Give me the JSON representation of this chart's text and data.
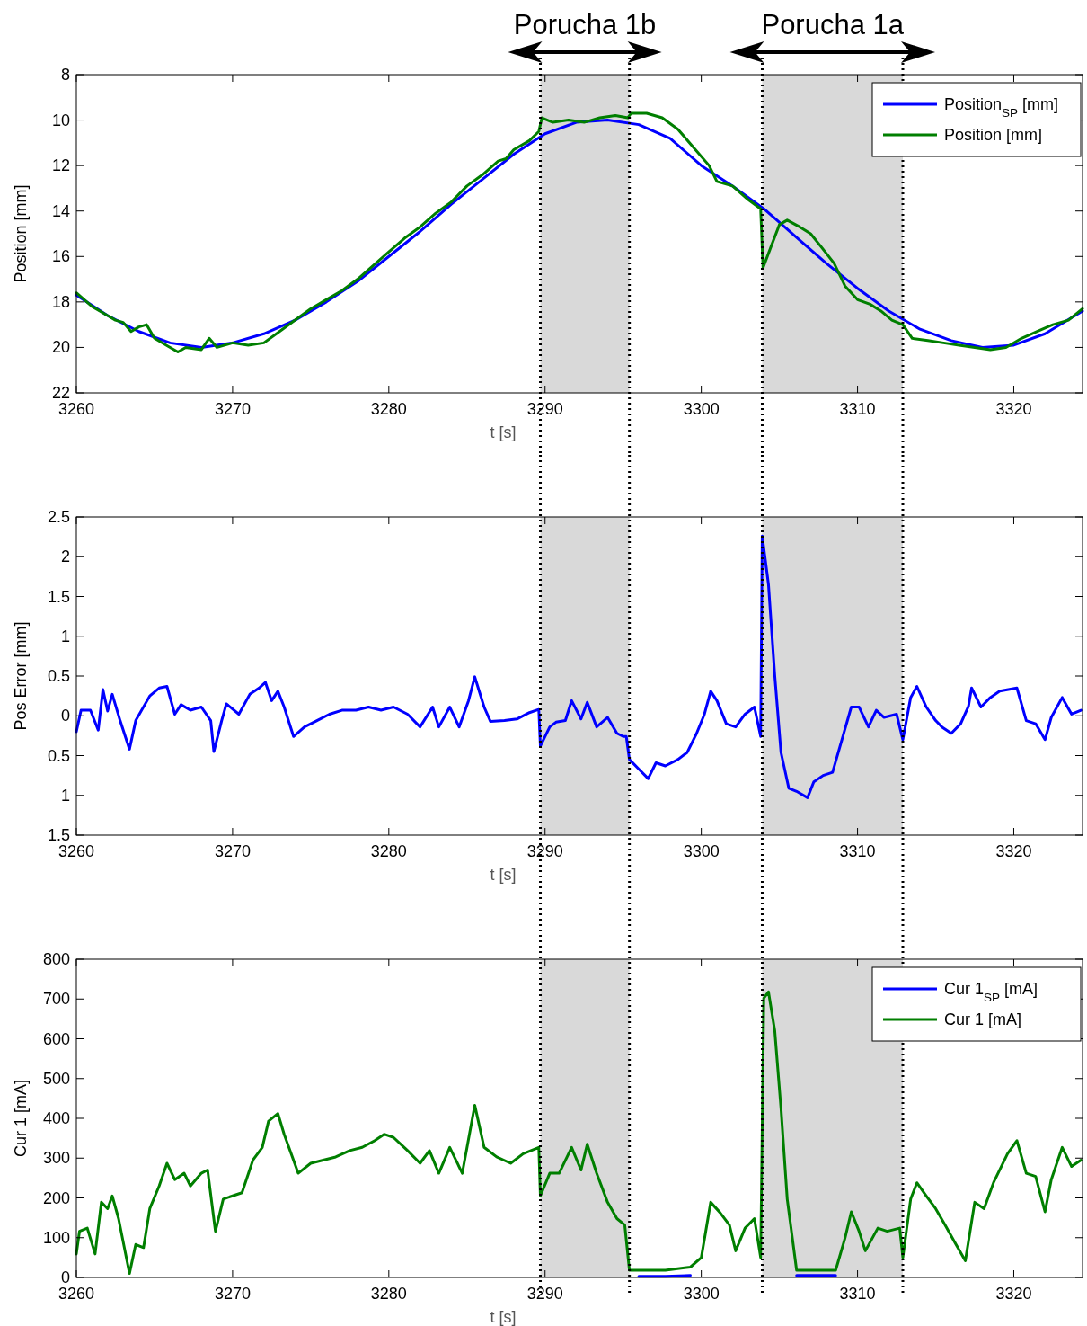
{
  "chart_data": [
    {
      "type": "line",
      "ylabel": "Position [mm]",
      "xlabel": "t [s]",
      "xlim": [
        3260,
        3324.4
      ],
      "xticks": [
        3260,
        3270,
        3280,
        3290,
        3300,
        3310,
        3320
      ],
      "ylim": [
        22,
        8
      ],
      "yticks": [
        8,
        10,
        12,
        14,
        16,
        18,
        20,
        22
      ],
      "legend": "top right",
      "grid": false,
      "annotations": [
        "Porucha 1b",
        "Porucha 1a"
      ],
      "bands": [
        {
          "axis": "x",
          "from": 3289.7,
          "to": 3295.4,
          "color": "#d9d9d9"
        },
        {
          "axis": "x",
          "from": 3303.9,
          "to": 3312.9,
          "color": "#d9d9d9"
        }
      ],
      "ref_lines": [
        {
          "axis": "x",
          "value": 3289.7,
          "color": "#000000",
          "line_style": "dotted"
        },
        {
          "axis": "x",
          "value": 3295.4,
          "color": "#000000",
          "line_style": "dotted"
        },
        {
          "axis": "x",
          "value": 3303.9,
          "color": "#000000",
          "line_style": "dotted"
        },
        {
          "axis": "x",
          "value": 3312.9,
          "color": "#000000",
          "line_style": "dotted"
        }
      ],
      "series": [
        {
          "name": "Position$_{SP}$ [mm]",
          "color": "#0000ff",
          "x": [
            3260,
            3262,
            3264,
            3266,
            3268,
            3270,
            3272,
            3274,
            3276,
            3278,
            3280,
            3282,
            3284,
            3286,
            3288,
            3290,
            3292,
            3294,
            3296,
            3298,
            3300,
            3302,
            3304,
            3306,
            3308,
            3310,
            3312,
            3314,
            3316,
            3318,
            3320,
            3322,
            3324.4
          ],
          "values": [
            17.7,
            18.6,
            19.3,
            19.8,
            20.0,
            19.8,
            19.4,
            18.8,
            18.0,
            17.1,
            16.0,
            14.9,
            13.7,
            12.6,
            11.5,
            10.6,
            10.1,
            10.0,
            10.2,
            10.8,
            12.0,
            12.9,
            13.9,
            15.1,
            16.3,
            17.4,
            18.4,
            19.2,
            19.7,
            20.0,
            19.9,
            19.4,
            18.4
          ]
        },
        {
          "name": "Position [mm]",
          "color": "#007f00",
          "x": [
            3260,
            3261,
            3262,
            3262.5,
            3263,
            3263.5,
            3264,
            3264.5,
            3265,
            3266,
            3266.5,
            3267,
            3268,
            3268.5,
            3269,
            3270,
            3271,
            3272,
            3273,
            3274,
            3275,
            3276,
            3277,
            3278,
            3279,
            3280,
            3281,
            3282,
            3283,
            3284,
            3285,
            3286,
            3287,
            3287.5,
            3288,
            3289,
            3289.6,
            3289.8,
            3290.5,
            3291.5,
            3292.5,
            3293.5,
            3294.5,
            3295.3,
            3295.5,
            3296.5,
            3297.5,
            3298.5,
            3299.5,
            3300.5,
            3301,
            3302,
            3303,
            3303.8,
            3303.95,
            3304.5,
            3305,
            3305.5,
            3306.3,
            3307,
            3307.7,
            3308.5,
            3309.2,
            3310,
            3310.8,
            3311.5,
            3312.2,
            3312.9,
            3313.5,
            3314.5,
            3315.5,
            3316.5,
            3317.5,
            3318.5,
            3319.5,
            3320.5,
            3321.5,
            3322.5,
            3323.5,
            3324.4
          ],
          "values": [
            17.6,
            18.2,
            18.6,
            18.8,
            18.9,
            19.3,
            19.1,
            19.0,
            19.6,
            20.0,
            20.2,
            20.0,
            20.1,
            19.6,
            20.0,
            19.8,
            19.9,
            19.8,
            19.3,
            18.8,
            18.3,
            17.9,
            17.5,
            17.0,
            16.4,
            15.8,
            15.2,
            14.7,
            14.1,
            13.6,
            12.9,
            12.4,
            11.8,
            11.7,
            11.3,
            10.9,
            10.5,
            9.9,
            10.1,
            10.0,
            10.1,
            9.9,
            9.8,
            9.9,
            9.7,
            9.7,
            9.9,
            10.4,
            11.2,
            12.0,
            12.7,
            12.9,
            13.5,
            13.9,
            16.5,
            15.5,
            14.6,
            14.4,
            14.7,
            15.0,
            15.6,
            16.3,
            17.3,
            17.9,
            18.1,
            18.4,
            18.8,
            19.0,
            19.6,
            19.7,
            19.8,
            19.9,
            20.0,
            20.1,
            20.0,
            19.6,
            19.3,
            19.0,
            18.8,
            18.3
          ]
        }
      ]
    },
    {
      "type": "line",
      "ylabel": "Pos Error [mm]",
      "xlabel": "t [s]",
      "xlim": [
        3260,
        3324.4
      ],
      "xticks": [
        3260,
        3270,
        3280,
        3290,
        3300,
        3310,
        3320
      ],
      "ylim": [
        -1.5,
        2.5
      ],
      "yticks": [
        2.5,
        2,
        1.5,
        1,
        0.5,
        0,
        {
          "value": -0.5,
          "label": "0.5"
        },
        {
          "value": -1,
          "label": "1"
        },
        {
          "value": -1.5,
          "label": "1.5"
        }
      ],
      "grid": false,
      "bands": [
        {
          "axis": "x",
          "from": 3289.7,
          "to": 3295.4,
          "color": "#d9d9d9"
        },
        {
          "axis": "x",
          "from": 3303.9,
          "to": 3312.9,
          "color": "#d9d9d9"
        }
      ],
      "ref_lines": [
        {
          "axis": "x",
          "value": 3289.7,
          "color": "#000000",
          "line_style": "dotted"
        },
        {
          "axis": "x",
          "value": 3295.4,
          "color": "#000000",
          "line_style": "dotted"
        },
        {
          "axis": "x",
          "value": 3303.9,
          "color": "#000000",
          "line_style": "dotted"
        },
        {
          "axis": "x",
          "value": 3312.9,
          "color": "#000000",
          "line_style": "dotted"
        }
      ],
      "series": [
        {
          "color": "#0000ff",
          "x": [
            3260,
            3260.3,
            3260.9,
            3261.4,
            3261.7,
            3262,
            3262.3,
            3262.8,
            3263.4,
            3263.8,
            3264.7,
            3265.3,
            3265.8,
            3266.3,
            3266.7,
            3267.3,
            3268,
            3268.6,
            3268.8,
            3269.3,
            3269.6,
            3270.4,
            3271.1,
            3271.7,
            3272.1,
            3272.5,
            3272.9,
            3273.3,
            3273.9,
            3274.6,
            3275.4,
            3276.2,
            3277,
            3277.9,
            3278.7,
            3279.5,
            3280.3,
            3281.2,
            3282,
            3282.8,
            3283.2,
            3283.9,
            3284.5,
            3285.1,
            3285.5,
            3286.1,
            3286.5,
            3287.4,
            3288.2,
            3289,
            3289.6,
            3289.7,
            3290.3,
            3290.7,
            3291.3,
            3291.7,
            3292.3,
            3292.7,
            3293.3,
            3294,
            3294.6,
            3295,
            3295.2,
            3295.4,
            3296,
            3296.6,
            3297.1,
            3297.7,
            3298.5,
            3299.1,
            3299.7,
            3300.2,
            3300.6,
            3301,
            3301.6,
            3302.2,
            3302.8,
            3303.4,
            3303.8,
            3303.9,
            3304.3,
            3304.7,
            3305.1,
            3305.6,
            3306.1,
            3306.8,
            3307.2,
            3307.8,
            3308.4,
            3309,
            3309.6,
            3310.1,
            3310.7,
            3311.2,
            3311.7,
            3312.5,
            3312.9,
            3313.4,
            3313.8,
            3314.4,
            3315,
            3315.4,
            3316,
            3316.6,
            3317.1,
            3317.3,
            3317.9,
            3318.5,
            3319.1,
            3320.2,
            3320.8,
            3321.4,
            3322,
            3322.4,
            3323.1,
            3323.7,
            3324.3
          ],
          "values": [
            -0.2,
            0.07,
            0.07,
            -0.18,
            0.33,
            0.06,
            0.27,
            -0.06,
            -0.42,
            -0.06,
            0.25,
            0.35,
            0.37,
            0.02,
            0.14,
            0.07,
            0.11,
            -0.06,
            -0.45,
            -0.06,
            0.15,
            0.02,
            0.27,
            0.35,
            0.42,
            0.19,
            0.31,
            0.11,
            -0.26,
            -0.14,
            -0.06,
            0.02,
            0.07,
            0.07,
            0.11,
            0.07,
            0.11,
            0.02,
            -0.14,
            0.11,
            -0.14,
            0.11,
            -0.14,
            0.19,
            0.49,
            0.11,
            -0.07,
            -0.06,
            -0.04,
            0.04,
            0.08,
            -0.38,
            -0.14,
            -0.08,
            -0.06,
            0.19,
            -0.04,
            0.17,
            -0.14,
            -0.02,
            -0.22,
            -0.26,
            -0.26,
            -0.55,
            -0.67,
            -0.79,
            -0.59,
            -0.63,
            -0.55,
            -0.46,
            -0.22,
            0.02,
            0.31,
            0.19,
            -0.1,
            -0.14,
            0.02,
            0.11,
            -0.26,
            2.26,
            1.65,
            0.51,
            -0.46,
            -0.91,
            -0.95,
            -1.03,
            -0.83,
            -0.75,
            -0.71,
            -0.3,
            0.11,
            0.11,
            -0.14,
            0.07,
            -0.02,
            0.02,
            -0.3,
            0.23,
            0.37,
            0.11,
            -0.06,
            -0.14,
            -0.22,
            -0.1,
            0.12,
            0.35,
            0.11,
            0.23,
            0.31,
            0.35,
            -0.06,
            -0.1,
            -0.3,
            -0.02,
            0.23,
            0.02,
            0.07
          ]
        }
      ]
    },
    {
      "type": "line",
      "ylabel": "Cur 1 [mA]",
      "xlabel": "t [s]",
      "xlim": [
        3260,
        3324.4
      ],
      "xticks": [
        3260,
        3270,
        3280,
        3290,
        3300,
        3310,
        3320
      ],
      "ylim": [
        0,
        800
      ],
      "yticks": [
        0,
        100,
        200,
        300,
        400,
        500,
        600,
        700,
        800
      ],
      "legend": "top right",
      "grid": false,
      "bands": [
        {
          "axis": "x",
          "from": 3289.7,
          "to": 3295.4,
          "color": "#d9d9d9"
        },
        {
          "axis": "x",
          "from": 3303.9,
          "to": 3312.9,
          "color": "#d9d9d9"
        }
      ],
      "ref_lines": [
        {
          "axis": "x",
          "value": 3289.7,
          "color": "#000000",
          "line_style": "dotted"
        },
        {
          "axis": "x",
          "value": 3295.4,
          "color": "#000000",
          "line_style": "dotted"
        },
        {
          "axis": "x",
          "value": 3303.9,
          "color": "#000000",
          "line_style": "dotted"
        },
        {
          "axis": "x",
          "value": 3312.9,
          "color": "#000000",
          "line_style": "dotted"
        }
      ],
      "x": [
        3260,
        3260.2,
        3260.7,
        3261.2,
        3261.6,
        3262,
        3262.3,
        3262.7,
        3263.4,
        3263.8,
        3264.3,
        3264.7,
        3265.3,
        3265.8,
        3266.3,
        3266.9,
        3267.3,
        3268,
        3268.4,
        3268.9,
        3269.4,
        3270,
        3270.6,
        3271.3,
        3271.9,
        3272.3,
        3272.9,
        3273.3,
        3274.2,
        3275,
        3275.8,
        3276.6,
        3277.5,
        3278.3,
        3279.1,
        3279.7,
        3280.3,
        3281.2,
        3282,
        3282.6,
        3283.2,
        3283.9,
        3284.7,
        3285.5,
        3286.1,
        3286.9,
        3287.8,
        3288.6,
        3289.6,
        3289.7,
        3290.3,
        3290.9,
        3291.7,
        3292.3,
        3292.7,
        3293.3,
        3294,
        3294.6,
        3295.1,
        3295.4,
        3296,
        3297.7,
        3299.3,
        3300,
        3300.6,
        3301.2,
        3301.8,
        3302.2,
        3302.8,
        3303.4,
        3303.8,
        3304,
        3304.3,
        3304.7,
        3305.1,
        3305.5,
        3306.1,
        3307.2,
        3308.6,
        3309.2,
        3309.6,
        3310.1,
        3310.5,
        3311.3,
        3311.9,
        3312.7,
        3312.9,
        3313.4,
        3313.8,
        3314.4,
        3315,
        3315.6,
        3316.3,
        3316.9,
        3317.5,
        3318.1,
        3318.7,
        3319.6,
        3320.2,
        3320.8,
        3321.4,
        3322,
        3322.4,
        3323.1,
        3323.7,
        3324.3
      ],
      "series": [
        {
          "name": "Cur 1$_{SP}$ [mA]",
          "color": "#0000ff",
          "values": [
            null,
            null,
            null,
            null,
            null,
            null,
            null,
            null,
            null,
            null,
            null,
            null,
            null,
            null,
            null,
            null,
            null,
            null,
            null,
            null,
            null,
            null,
            null,
            null,
            null,
            null,
            null,
            null,
            null,
            null,
            null,
            null,
            null,
            null,
            null,
            null,
            null,
            null,
            null,
            null,
            null,
            null,
            null,
            null,
            null,
            null,
            null,
            null,
            null,
            null,
            null,
            null,
            null,
            null,
            null,
            null,
            null,
            null,
            null,
            null,
            3,
            3,
            5,
            null,
            null,
            null,
            null,
            null,
            null,
            null,
            null,
            null,
            null,
            null,
            null,
            null,
            5,
            5,
            5,
            null,
            null,
            null,
            null,
            null,
            null,
            null,
            null,
            null,
            null,
            null,
            null,
            null,
            null,
            null,
            null,
            null,
            null,
            null,
            null,
            null,
            null,
            null,
            null,
            null,
            null,
            null
          ]
        },
        {
          "name": "Cur 1 [mA]",
          "color": "#007f00",
          "values": [
            59,
            116,
            124,
            59,
            189,
            173,
            205,
            148,
            10,
            83,
            75,
            173,
            230,
            287,
            246,
            262,
            230,
            262,
            270,
            116,
            197,
            205,
            213,
            295,
            327,
            393,
            412,
            360,
            262,
            287,
            295,
            303,
            319,
            327,
            344,
            360,
            352,
            319,
            287,
            319,
            262,
            327,
            262,
            433,
            327,
            303,
            287,
            311,
            327,
            205,
            262,
            262,
            327,
            270,
            335,
            262,
            189,
            148,
            132,
            18,
            18,
            18,
            26,
            50,
            189,
            163,
            132,
            67,
            124,
            148,
            50,
            702,
            718,
            621,
            425,
            197,
            18,
            18,
            18,
            99,
            165,
            116,
            67,
            124,
            116,
            124,
            50,
            197,
            238,
            205,
            173,
            132,
            83,
            42,
            189,
            173,
            238,
            311,
            344,
            262,
            254,
            165,
            246,
            327,
            279,
            295
          ]
        }
      ]
    }
  ]
}
